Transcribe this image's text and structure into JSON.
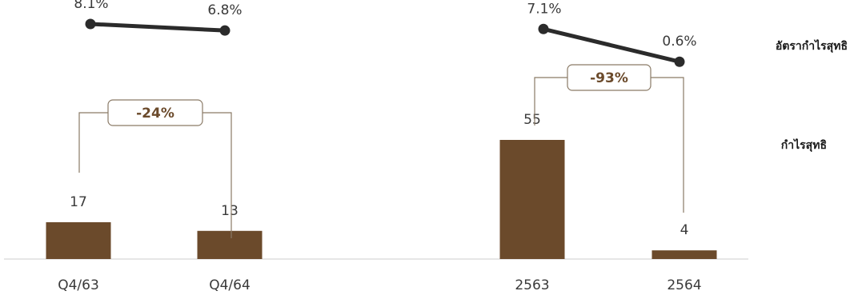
{
  "chart_data": {
    "type": "bar",
    "colors": {
      "bar": "#6b4a2b",
      "line": "#2b2b2b",
      "bracket": "#8a7a66",
      "change_text": "#6b4a2b",
      "axis": "#cccccc"
    },
    "legend": {
      "net_profit_margin": "อัตรากำไรสุทธิ",
      "net_profit": "กำไรสุทธิ"
    },
    "groups": [
      {
        "categories": [
          "Q4/63",
          "Q4/64"
        ],
        "net_profit": [
          17,
          13
        ],
        "net_profit_labels": [
          "17",
          "13"
        ],
        "net_profit_margin": [
          8.1,
          6.8
        ],
        "net_profit_margin_labels": [
          "8.1%",
          "6.8%"
        ],
        "change_label": "-24%"
      },
      {
        "categories": [
          "2563",
          "2564"
        ],
        "net_profit": [
          55,
          4
        ],
        "net_profit_labels": [
          "55",
          "4"
        ],
        "net_profit_margin": [
          7.1,
          0.6
        ],
        "net_profit_margin_labels": [
          "7.1%",
          "0.6%"
        ],
        "change_label": "-93%"
      }
    ],
    "ylim_net_profit": [
      0,
      55
    ],
    "legend_position": "right",
    "grid": false
  }
}
